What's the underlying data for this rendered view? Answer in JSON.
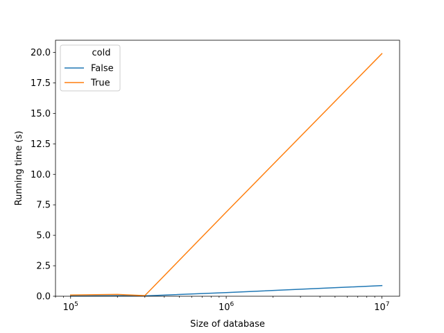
{
  "chart_data": {
    "type": "line",
    "xlabel": "Size of database",
    "ylabel": "Running time (s)",
    "xscale": "log",
    "xlim": [
      80000,
      13000000
    ],
    "ylim": [
      0,
      21
    ],
    "x_ticks": [
      {
        "value": 100000,
        "base": "10",
        "exp": "5"
      },
      {
        "value": 1000000,
        "base": "10",
        "exp": "6"
      },
      {
        "value": 10000000,
        "base": "10",
        "exp": "7"
      }
    ],
    "y_ticks": [
      {
        "value": 0,
        "label": "0.0"
      },
      {
        "value": 2.5,
        "label": "2.5"
      },
      {
        "value": 5,
        "label": "5.0"
      },
      {
        "value": 7.5,
        "label": "7.5"
      },
      {
        "value": 10,
        "label": "10.0"
      },
      {
        "value": 12.5,
        "label": "12.5"
      },
      {
        "value": 15,
        "label": "15.0"
      },
      {
        "value": 17.5,
        "label": "17.5"
      },
      {
        "value": 20,
        "label": "20.0"
      }
    ],
    "legend": {
      "title": "cold",
      "placement": "upper-left"
    },
    "series": [
      {
        "name": "False",
        "color": "#1f77b4",
        "x": [
          100000,
          200000,
          300000,
          1000000,
          10000000
        ],
        "y": [
          0.02,
          0.04,
          0.03,
          0.3,
          0.87
        ]
      },
      {
        "name": "True",
        "color": "#ff7f0e",
        "x": [
          100000,
          200000,
          300000,
          1000000,
          10000000
        ],
        "y": [
          0.1,
          0.15,
          0.05,
          6.9,
          19.9
        ]
      }
    ]
  }
}
